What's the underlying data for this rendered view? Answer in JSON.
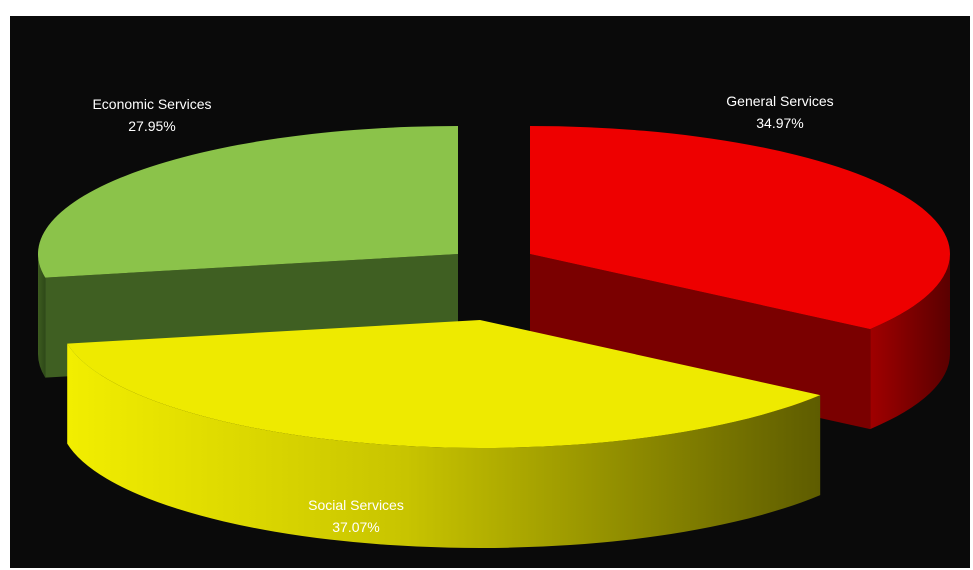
{
  "chart_data": {
    "type": "pie",
    "style": "3d-exploded",
    "background": "#0a0a0a",
    "slices": [
      {
        "name": "General Services",
        "value": 34.97,
        "label": "34.97%",
        "color": "#ee0000",
        "side_color": "#7a0000"
      },
      {
        "name": "Social Services",
        "value": 37.07,
        "label": "37.07%",
        "color": "#eeea00",
        "side_color": "#8a8600"
      },
      {
        "name": "Economic Services",
        "value": 27.95,
        "label": "27.95%",
        "color": "#8bc34a",
        "side_color": "#3f5f22"
      }
    ],
    "title": "",
    "legend": "none",
    "label_placement": "outside"
  }
}
